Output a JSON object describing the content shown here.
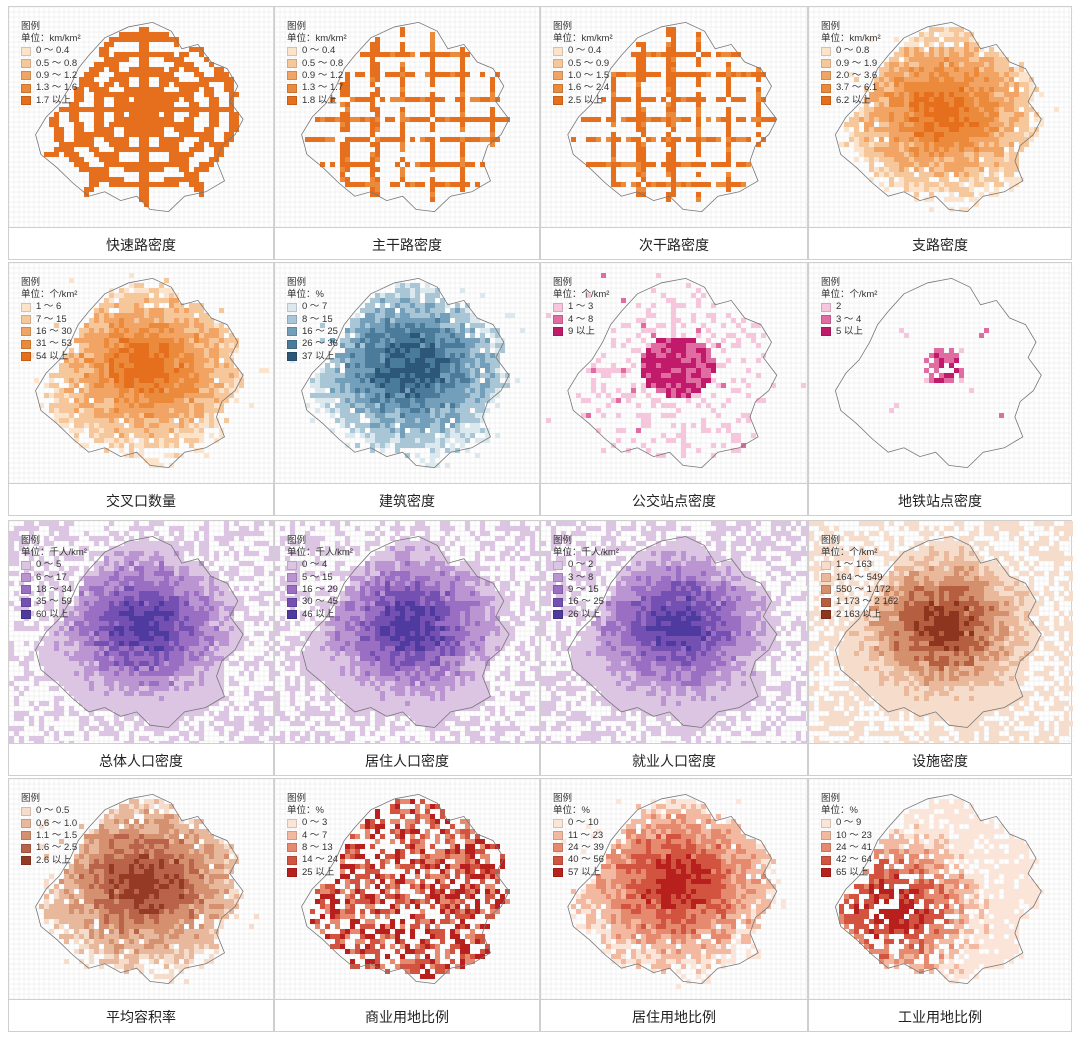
{
  "colors": {
    "outline": "#777777",
    "gridline": "#e6e6e6"
  },
  "panels": [
    {
      "caption": "快速路密度",
      "legend_title": "图例",
      "unit": "单位：km/km²",
      "pattern": "ring",
      "classes": [
        {
          "label": "0 ～ 0.4",
          "color": "#fbe3cc"
        },
        {
          "label": "0.5 ～ 0.8",
          "color": "#f6c79a"
        },
        {
          "label": "0.9 ～ 1.2",
          "color": "#f1a463"
        },
        {
          "label": "1.3 ～ 1.6",
          "color": "#ec8a3c"
        },
        {
          "label": "1.7 以上",
          "color": "#e56f1c"
        }
      ]
    },
    {
      "caption": "主干路密度",
      "legend_title": "图例",
      "unit": "单位：km/km²",
      "pattern": "lines",
      "classes": [
        {
          "label": "0 ～ 0.4",
          "color": "#fbe3cc"
        },
        {
          "label": "0.5 ～ 0.8",
          "color": "#f6c79a"
        },
        {
          "label": "0.9 ～ 1.2",
          "color": "#f1a463"
        },
        {
          "label": "1.3 ～ 1.7",
          "color": "#ec8a3c"
        },
        {
          "label": "1.8 以上",
          "color": "#e56f1c"
        }
      ]
    },
    {
      "caption": "次干路密度",
      "legend_title": "图例",
      "unit": "单位：km/km²",
      "pattern": "lines",
      "classes": [
        {
          "label": "0 ～ 0.4",
          "color": "#fbe3cc"
        },
        {
          "label": "0.5 ～ 0.9",
          "color": "#f6c79a"
        },
        {
          "label": "1.0 ～ 1.5",
          "color": "#f1a463"
        },
        {
          "label": "1.6 ～ 2.4",
          "color": "#ec8a3c"
        },
        {
          "label": "2.5 以上",
          "color": "#e56f1c"
        }
      ]
    },
    {
      "caption": "支路密度",
      "legend_title": "图例",
      "unit": "单位：km/km²",
      "pattern": "blob",
      "classes": [
        {
          "label": "0 ～ 0.8",
          "color": "#fbe3cc"
        },
        {
          "label": "0.9 ～ 1.9",
          "color": "#f6c79a"
        },
        {
          "label": "2.0 ～ 3.6",
          "color": "#f1a463"
        },
        {
          "label": "3.7 ～ 6.1",
          "color": "#ec8a3c"
        },
        {
          "label": "6.2 以上",
          "color": "#e56f1c"
        }
      ]
    },
    {
      "caption": "交叉口数量",
      "legend_title": "图例",
      "unit": "单位：个/km²",
      "pattern": "blob",
      "classes": [
        {
          "label": "1 ～ 6",
          "color": "#fbe3cc"
        },
        {
          "label": "7 ～ 15",
          "color": "#f6c79a"
        },
        {
          "label": "16 ～ 30",
          "color": "#f1a463"
        },
        {
          "label": "31 ～ 53",
          "color": "#ec8a3c"
        },
        {
          "label": "54 以上",
          "color": "#e56f1c"
        }
      ]
    },
    {
      "caption": "建筑密度",
      "legend_title": "图例",
      "unit": "单位：%",
      "pattern": "blob",
      "classes": [
        {
          "label": "0 ～ 7",
          "color": "#dbe8ee"
        },
        {
          "label": "8 ～ 15",
          "color": "#a9c6d6"
        },
        {
          "label": "16 ～ 25",
          "color": "#739fba"
        },
        {
          "label": "26 ～ 36",
          "color": "#4a7b9b"
        },
        {
          "label": "37 以上",
          "color": "#2c5778"
        }
      ]
    },
    {
      "caption": "公交站点密度",
      "legend_title": "图例",
      "unit": "单位：个/km²",
      "pattern": "rays",
      "classes": [
        {
          "label": "1 ～ 3",
          "color": "#f5c6dc"
        },
        {
          "label": "4 ～ 8",
          "color": "#e06ca2"
        },
        {
          "label": "9 以上",
          "color": "#c21a6a"
        }
      ]
    },
    {
      "caption": "地铁站点密度",
      "legend_title": "图例",
      "unit": "单位：个/km²",
      "pattern": "sparse",
      "classes": [
        {
          "label": "2",
          "color": "#f5c6dc"
        },
        {
          "label": "3 ～ 4",
          "color": "#e06ca2"
        },
        {
          "label": "5 以上",
          "color": "#c21a6a"
        }
      ]
    },
    {
      "caption": "总体人口密度",
      "legend_title": "图例",
      "unit": "单位：千人/km²",
      "pattern": "full",
      "classes": [
        {
          "label": "0 ～ 5",
          "color": "#dcc4e3"
        },
        {
          "label": "6 ～ 17",
          "color": "#bb95d2"
        },
        {
          "label": "18 ～ 34",
          "color": "#9a6ec3"
        },
        {
          "label": "35 ～ 59",
          "color": "#7450b3"
        },
        {
          "label": "60 以上",
          "color": "#4f3aa0"
        }
      ]
    },
    {
      "caption": "居住人口密度",
      "legend_title": "图例",
      "unit": "单位：千人/km²",
      "pattern": "full",
      "classes": [
        {
          "label": "0 ～ 4",
          "color": "#dcc4e3"
        },
        {
          "label": "5 ～ 15",
          "color": "#bb95d2"
        },
        {
          "label": "16 ～ 29",
          "color": "#9a6ec3"
        },
        {
          "label": "30 ～ 45",
          "color": "#7450b3"
        },
        {
          "label": "46 以上",
          "color": "#4f3aa0"
        }
      ]
    },
    {
      "caption": "就业人口密度",
      "legend_title": "图例",
      "unit": "单位：千人/km²",
      "pattern": "full",
      "classes": [
        {
          "label": "0 ～ 2",
          "color": "#dcc4e3"
        },
        {
          "label": "3 ～ 8",
          "color": "#bb95d2"
        },
        {
          "label": "9 ～ 15",
          "color": "#9a6ec3"
        },
        {
          "label": "16 ～ 25",
          "color": "#7450b3"
        },
        {
          "label": "26 以上",
          "color": "#4f3aa0"
        }
      ]
    },
    {
      "caption": "设施密度",
      "legend_title": "图例",
      "unit": "单位：个/km²",
      "pattern": "full",
      "classes": [
        {
          "label": "1 ～ 163",
          "color": "#f6dccb"
        },
        {
          "label": "164 ～ 549",
          "color": "#eab99c"
        },
        {
          "label": "550 ～ 1 172",
          "color": "#d48f6c"
        },
        {
          "label": "1 173 ～ 2 162",
          "color": "#b55f40"
        },
        {
          "label": "2 163 以上",
          "color": "#8e3520"
        }
      ]
    },
    {
      "caption": "平均容积率",
      "legend_title": "图例",
      "unit": "",
      "pattern": "blob",
      "classes": [
        {
          "label": "0 ～ 0.5",
          "color": "#f6dccb"
        },
        {
          "label": "0.6 ～ 1.0",
          "color": "#e8b89c"
        },
        {
          "label": "1.1 ～ 1.5",
          "color": "#d4906f"
        },
        {
          "label": "1.6 ～ 2.5",
          "color": "#b9634a"
        },
        {
          "label": "2.6 以上",
          "color": "#953a25"
        }
      ]
    },
    {
      "caption": "商业用地比例",
      "legend_title": "图例",
      "unit": "单位：%",
      "pattern": "scatter",
      "classes": [
        {
          "label": "0 ～ 3",
          "color": "#fbe4d8"
        },
        {
          "label": "4 ～ 7",
          "color": "#f2b9a0"
        },
        {
          "label": "8 ～ 13",
          "color": "#e58a6e"
        },
        {
          "label": "14 ～ 24",
          "color": "#d2533f"
        },
        {
          "label": "25 以上",
          "color": "#b8201d"
        }
      ]
    },
    {
      "caption": "居住用地比例",
      "legend_title": "图例",
      "unit": "单位：%",
      "pattern": "blob",
      "classes": [
        {
          "label": "0 ～ 10",
          "color": "#fbe4d8"
        },
        {
          "label": "11 ～ 23",
          "color": "#f2b9a0"
        },
        {
          "label": "24 ～ 39",
          "color": "#e58a6e"
        },
        {
          "label": "40 ～ 56",
          "color": "#d2533f"
        },
        {
          "label": "57 以上",
          "color": "#b8201d"
        }
      ]
    },
    {
      "caption": "工业用地比例",
      "legend_title": "图例",
      "unit": "单位：%",
      "pattern": "west",
      "classes": [
        {
          "label": "0 ～ 9",
          "color": "#fbe4d8"
        },
        {
          "label": "10 ～ 23",
          "color": "#f2b9a0"
        },
        {
          "label": "24 ～ 41",
          "color": "#e58a6e"
        },
        {
          "label": "42 ～ 64",
          "color": "#d2533f"
        },
        {
          "label": "65 以上",
          "color": "#b8201d"
        }
      ]
    }
  ]
}
